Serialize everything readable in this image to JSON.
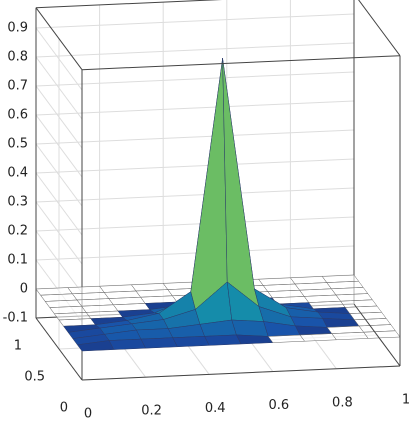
{
  "chart_data": {
    "type": "surface",
    "x": [
      0,
      0.1,
      0.2,
      0.3,
      0.4,
      0.5,
      0.6,
      0.7,
      0.8,
      0.9,
      1
    ],
    "y": [
      0,
      0.1,
      0.2,
      0.3,
      0.4,
      0.5,
      0.6,
      0.7,
      0.8,
      0.9,
      1
    ],
    "z": [
      [
        0,
        0,
        0,
        0,
        0,
        0,
        0,
        0,
        0,
        0,
        0
      ],
      [
        0,
        0.01,
        0.01,
        0.01,
        0.01,
        0.01,
        0,
        0,
        0,
        0,
        0
      ],
      [
        0,
        0.01,
        0.02,
        0.02,
        0.03,
        0.04,
        0.03,
        0.01,
        0,
        0,
        0
      ],
      [
        0,
        0.01,
        0.02,
        0.03,
        0.06,
        0.15,
        0.06,
        0.02,
        0.01,
        0,
        0
      ],
      [
        0,
        0,
        0.01,
        0.03,
        0.1,
        0.9,
        0.1,
        0.03,
        0.01,
        0,
        0
      ],
      [
        0,
        0,
        0,
        0.01,
        0.05,
        0.15,
        0.05,
        0.02,
        0,
        0,
        0
      ],
      [
        0,
        0,
        0,
        0,
        0.01,
        0.03,
        0.01,
        0,
        0,
        0,
        0
      ],
      [
        0,
        0,
        0,
        0,
        0,
        0,
        0,
        0,
        0,
        0,
        0
      ],
      [
        0,
        0,
        0,
        0,
        0,
        0,
        0,
        0,
        0,
        0,
        0
      ],
      [
        0,
        0,
        0,
        0,
        0,
        0,
        0,
        0,
        0,
        0,
        0
      ],
      [
        0,
        0,
        0,
        0,
        0,
        0,
        0,
        0,
        0,
        0,
        0
      ]
    ],
    "xlim": [
      0,
      1
    ],
    "ylim": [
      0,
      1
    ],
    "zlim": [
      -0.1,
      0.97
    ],
    "xticks": [
      0,
      0.2,
      0.4,
      0.6,
      0.8,
      1
    ],
    "yticks": [
      0,
      0.5,
      1
    ],
    "zticks": [
      -0.1,
      0,
      0.1,
      0.2,
      0.3,
      0.4,
      0.5,
      0.6,
      0.7,
      0.8,
      0.9
    ],
    "grid": true,
    "colormap": "parula"
  }
}
